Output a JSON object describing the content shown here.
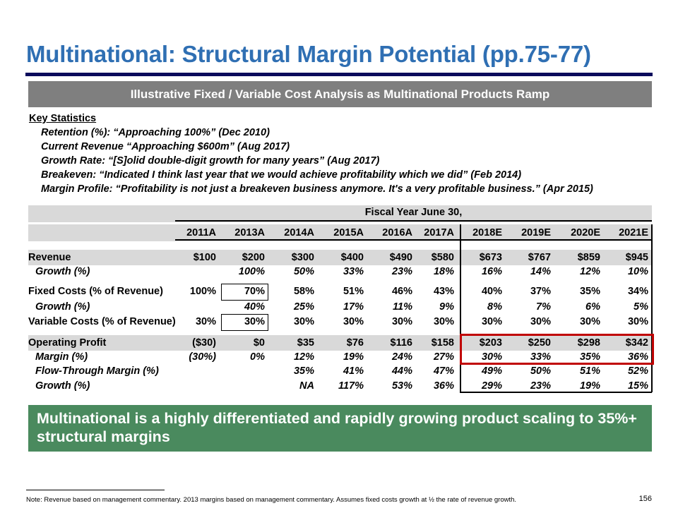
{
  "title": "Multinational: Structural Margin Potential (pp.75-77)",
  "banner": "Illustrative Fixed / Variable Cost Analysis as Multinational Products Ramp",
  "key_statistics": {
    "heading": "Key Statistics",
    "lines": [
      "Retention (%): “Approaching 100%” (Dec 2010)",
      "Current Revenue  “Approaching $600m” (Aug 2017)",
      "Growth Rate: “[S]olid double-digit growth for many years” (Aug 2017)",
      "Breakeven: “Indicated I think last year that we would achieve profitability which we did” (Feb 2014)",
      "Margin Profile: “Profitability is not just a breakeven business anymore. It's a very profitable business.” (Apr 2015)"
    ]
  },
  "table": {
    "fiscal_label": "Fiscal Year June 30,",
    "years": [
      "2011A",
      "2013A",
      "2014A",
      "2015A",
      "2016A",
      "2017A",
      "2018E",
      "2019E",
      "2020E",
      "2021E"
    ],
    "rows": [
      {
        "label": "Revenue",
        "values": [
          "$100",
          "$200",
          "$300",
          "$400",
          "$490",
          "$580",
          "$673",
          "$767",
          "$859",
          "$945"
        ]
      },
      {
        "label": "Growth (%)",
        "values": [
          "",
          "100%",
          "50%",
          "33%",
          "23%",
          "18%",
          "16%",
          "14%",
          "12%",
          "10%"
        ]
      },
      {
        "label": "Fixed Costs (% of Revenue)",
        "values": [
          "100%",
          "70%",
          "58%",
          "51%",
          "46%",
          "43%",
          "40%",
          "37%",
          "35%",
          "34%"
        ]
      },
      {
        "label": "Growth (%)",
        "values": [
          "",
          "40%",
          "25%",
          "17%",
          "11%",
          "9%",
          "8%",
          "7%",
          "6%",
          "5%"
        ]
      },
      {
        "label": "Variable Costs (% of Revenue)",
        "values": [
          "30%",
          "30%",
          "30%",
          "30%",
          "30%",
          "30%",
          "30%",
          "30%",
          "30%",
          "30%"
        ]
      },
      {
        "label": "Operating Profit",
        "values": [
          "($30)",
          "$0",
          "$35",
          "$76",
          "$116",
          "$158",
          "$203",
          "$250",
          "$298",
          "$342"
        ]
      },
      {
        "label": "Margin (%)",
        "values": [
          "(30%)",
          "0%",
          "12%",
          "19%",
          "24%",
          "27%",
          "30%",
          "33%",
          "35%",
          "36%"
        ]
      },
      {
        "label": "Flow-Through Margin (%)",
        "values": [
          "",
          "",
          "35%",
          "41%",
          "44%",
          "47%",
          "49%",
          "50%",
          "51%",
          "52%"
        ]
      },
      {
        "label": "Growth (%)",
        "values": [
          "",
          "",
          "NA",
          "117%",
          "53%",
          "36%",
          "29%",
          "23%",
          "19%",
          "15%"
        ]
      }
    ]
  },
  "callout": "Multinational is a highly differentiated and rapidly growing product scaling to 35%+ structural margins",
  "note": "Note: Revenue based on management commentary. 2013 margins based on management commentary. Assumes fixed costs growth at ½ the rate of revenue growth.",
  "page_number": "156",
  "colors": {
    "title": "#2f6fb3",
    "title_rule": "#0b0b5c",
    "banner": "#7f7f7f",
    "row_shade": "#d9d9d9",
    "highlight_box": "#c00000",
    "callout": "#4a8a5e"
  }
}
